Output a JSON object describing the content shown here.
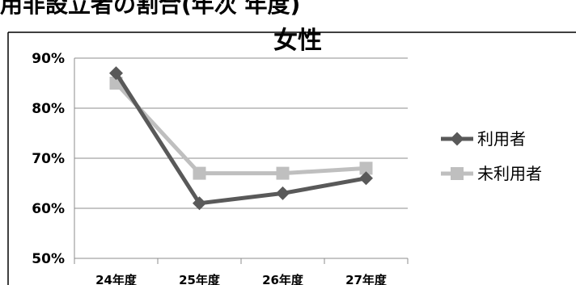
{
  "header": {
    "text": "用非設立者の割合(年次          年度)"
  },
  "chart_data": {
    "type": "line",
    "title": "女性",
    "categories": [
      "24年度",
      "25年度",
      "26年度",
      "27年度"
    ],
    "ylim": [
      0.5,
      0.9
    ],
    "yticks": [
      "50%",
      "60%",
      "70%",
      "80%",
      "90%"
    ],
    "grid": true,
    "legend_position": "right",
    "series": [
      {
        "name": "利用者",
        "values": [
          0.87,
          0.61,
          0.63,
          0.66
        ],
        "color": "#595959",
        "marker": "diamond"
      },
      {
        "name": "未利用者",
        "values": [
          0.85,
          0.67,
          0.67,
          0.68
        ],
        "color": "#bfbfbf",
        "marker": "square"
      }
    ]
  }
}
